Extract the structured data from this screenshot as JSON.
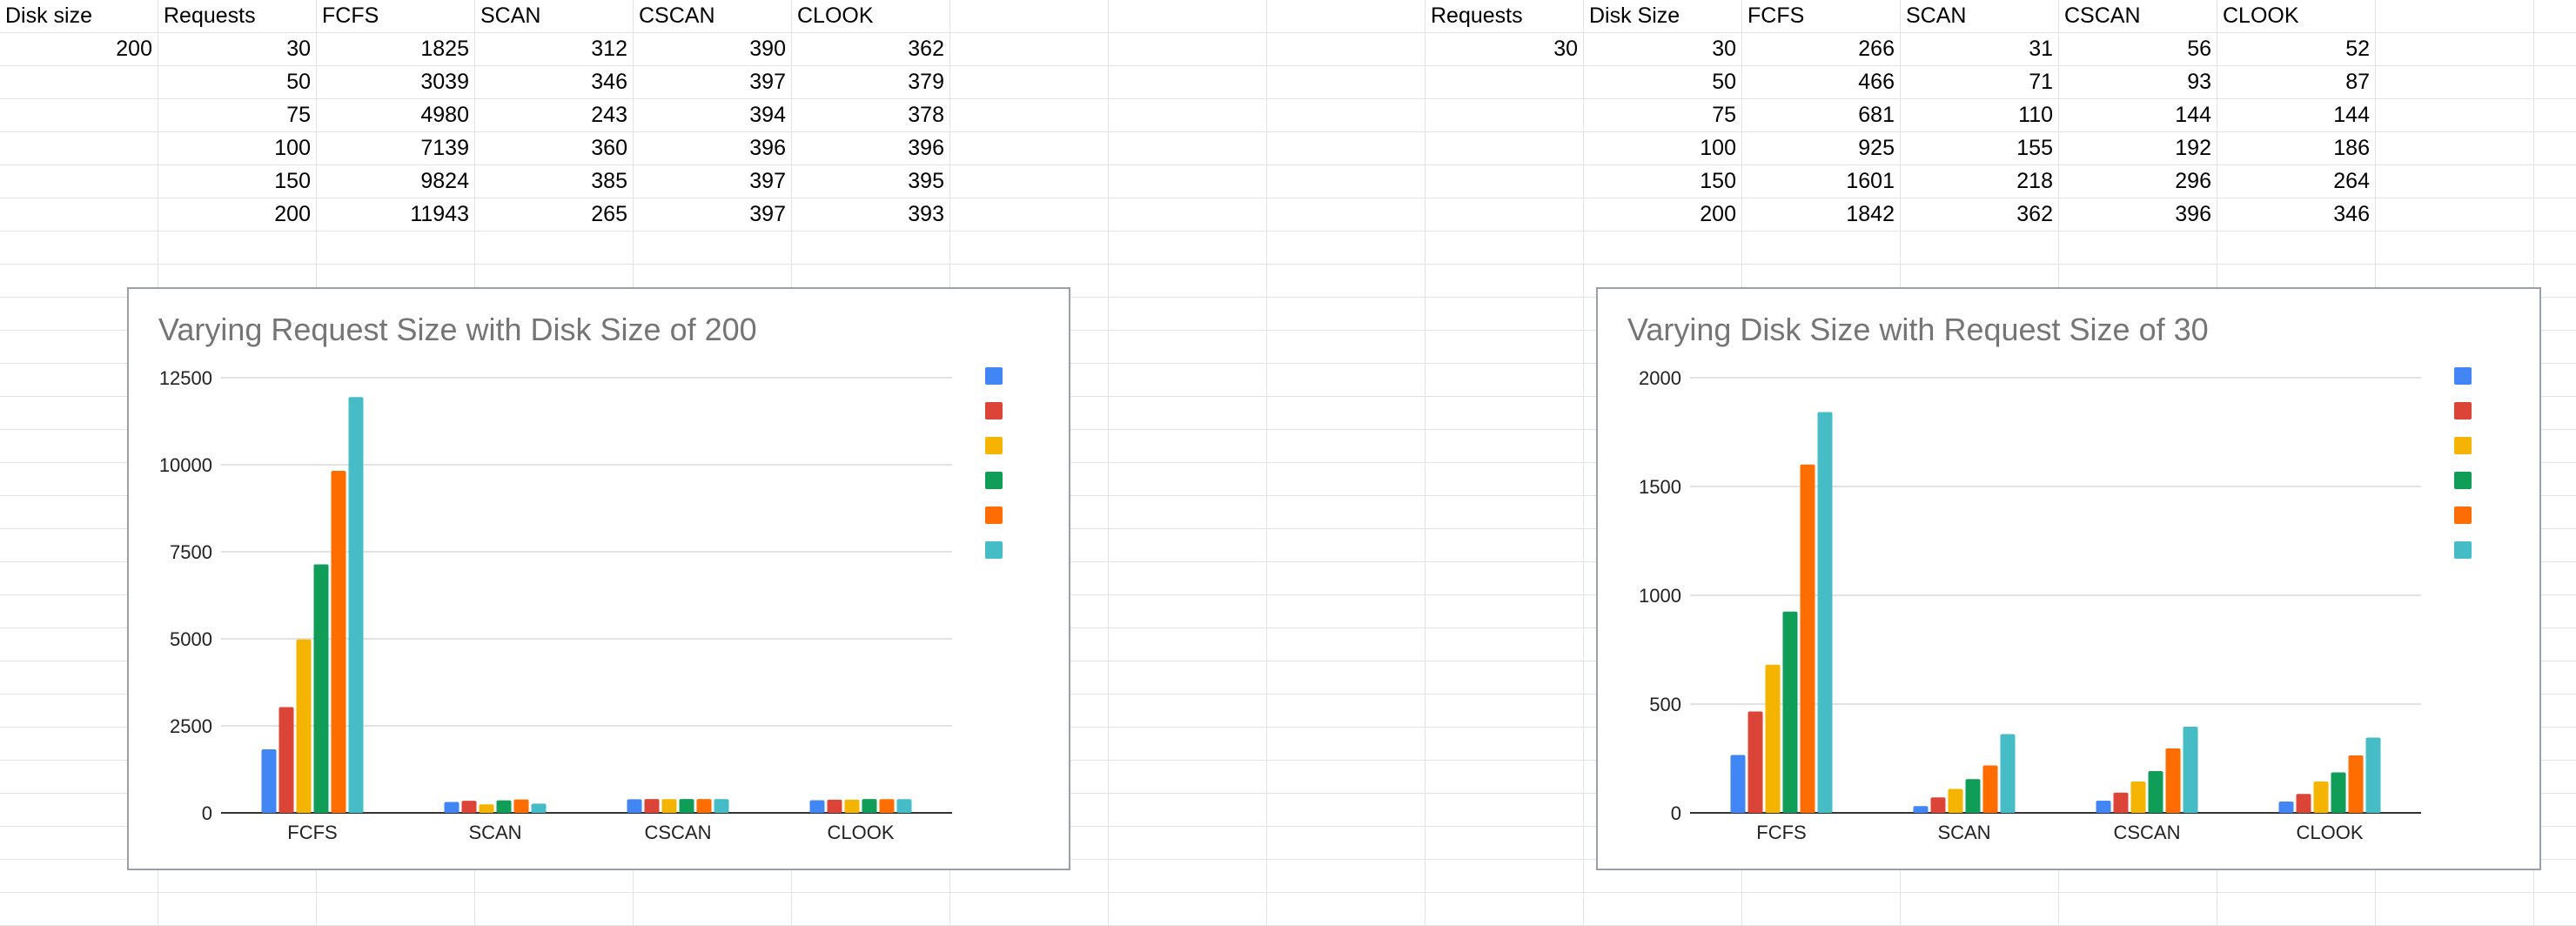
{
  "left_table": {
    "headers": [
      "Disk size",
      "Requests",
      "FCFS",
      "SCAN",
      "CSCAN",
      "CLOOK"
    ],
    "rows": [
      [
        "200",
        "30",
        "1825",
        "312",
        "390",
        "362"
      ],
      [
        "",
        "50",
        "3039",
        "346",
        "397",
        "379"
      ],
      [
        "",
        "75",
        "4980",
        "243",
        "394",
        "378"
      ],
      [
        "",
        "100",
        "7139",
        "360",
        "396",
        "396"
      ],
      [
        "",
        "150",
        "9824",
        "385",
        "397",
        "395"
      ],
      [
        "",
        "200",
        "11943",
        "265",
        "397",
        "393"
      ]
    ]
  },
  "right_table": {
    "headers": [
      "Requests",
      "Disk Size",
      "FCFS",
      "SCAN",
      "CSCAN",
      "CLOOK"
    ],
    "rows": [
      [
        "30",
        "30",
        "266",
        "31",
        "56",
        "52"
      ],
      [
        "",
        "50",
        "466",
        "71",
        "93",
        "87"
      ],
      [
        "",
        "75",
        "681",
        "110",
        "144",
        "144"
      ],
      [
        "",
        "100",
        "925",
        "155",
        "192",
        "186"
      ],
      [
        "",
        "150",
        "1601",
        "218",
        "296",
        "264"
      ],
      [
        "",
        "200",
        "1842",
        "362",
        "396",
        "346"
      ]
    ]
  },
  "chart_data": [
    {
      "type": "bar",
      "title": "Varying Request Size with Disk Size of 200",
      "categories": [
        "FCFS",
        "SCAN",
        "CSCAN",
        "CLOOK"
      ],
      "series": [
        {
          "values": [
            1825,
            312,
            390,
            362
          ]
        },
        {
          "values": [
            3039,
            346,
            397,
            379
          ]
        },
        {
          "values": [
            4980,
            243,
            394,
            378
          ]
        },
        {
          "values": [
            7139,
            360,
            396,
            396
          ]
        },
        {
          "values": [
            9824,
            385,
            397,
            395
          ]
        },
        {
          "values": [
            11943,
            265,
            397,
            393
          ]
        }
      ],
      "yticks": [
        "0",
        "2500",
        "5000",
        "7500",
        "10000",
        "12500"
      ],
      "ylim": [
        0,
        12500
      ],
      "grid": true,
      "legend": "right, colored swatches without labels"
    },
    {
      "type": "bar",
      "title": "Varying Disk Size with Request Size of 30",
      "categories": [
        "FCFS",
        "SCAN",
        "CSCAN",
        "CLOOK"
      ],
      "series": [
        {
          "values": [
            266,
            31,
            56,
            52
          ]
        },
        {
          "values": [
            466,
            71,
            93,
            87
          ]
        },
        {
          "values": [
            681,
            110,
            144,
            144
          ]
        },
        {
          "values": [
            925,
            155,
            192,
            186
          ]
        },
        {
          "values": [
            1601,
            218,
            296,
            264
          ]
        },
        {
          "values": [
            1842,
            362,
            396,
            346
          ]
        }
      ],
      "yticks": [
        "0",
        "500",
        "1000",
        "1500",
        "2000"
      ],
      "ylim": [
        0,
        2000
      ],
      "grid": true,
      "legend": "right, colored swatches without labels"
    }
  ],
  "series_colors": [
    "#4285f4",
    "#db4437",
    "#f4b400",
    "#0f9d58",
    "#ff6d01",
    "#46bdc6"
  ]
}
